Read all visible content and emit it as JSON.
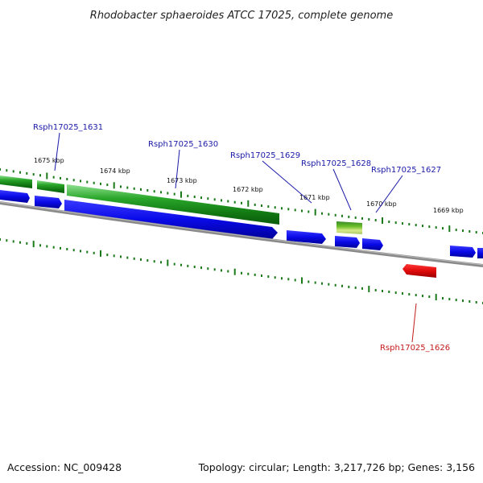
{
  "title": "Rhodobacter sphaeroides ATCC 17025, complete genome",
  "kbp_labels": [
    "1675 kbp",
    "1674 kbp",
    "1673 kbp",
    "1672 kbp",
    "1671 kbp",
    "1670 kbp",
    "1669 kbp"
  ],
  "gene_labels": [
    {
      "text": "Rsph17025_1631",
      "color": "#1a1aa8"
    },
    {
      "text": "Rsph17025_1630",
      "color": "#1a1aa8"
    },
    {
      "text": "Rsph17025_1629",
      "color": "#1a1aa8"
    },
    {
      "text": "Rsph17025_1628",
      "color": "#1a1aa8"
    },
    {
      "text": "Rsph17025_1627",
      "color": "#1a1aa8"
    },
    {
      "text": "Rsph17025_1626",
      "color": "#c41a1a"
    }
  ],
  "footer": {
    "accession": "Accession: NC_009428",
    "summary": "Topology: circular; Length: 3,217,726 bp; Genes: 3,156"
  },
  "colors": {
    "forward_cds": "#1010e0",
    "reverse_cds": "#e01010",
    "rna_green": "#1f9a1f",
    "backbone": "#777777",
    "tick": "#1a7a1a"
  }
}
